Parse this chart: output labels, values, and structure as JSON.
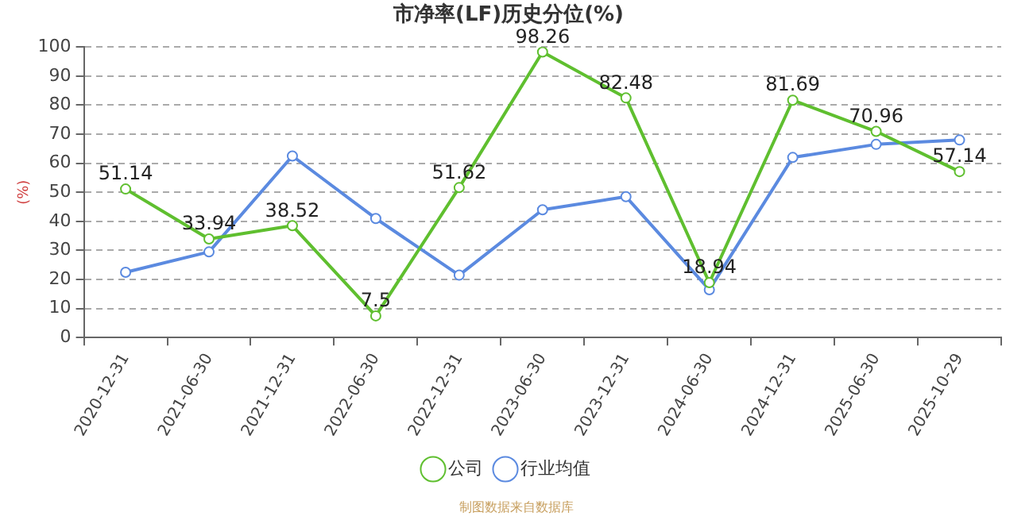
{
  "chart_data": {
    "type": "line",
    "title": "市净率(LF)历史分位(%)",
    "ylabel": "(%)",
    "categories": [
      "2020-12-31",
      "2021-06-30",
      "2021-12-31",
      "2022-06-30",
      "2022-12-31",
      "2023-06-30",
      "2023-12-31",
      "2024-06-30",
      "2024-12-31",
      "2025-06-30",
      "2025-10-29"
    ],
    "series": [
      {
        "name": "公司",
        "color": "#5fbf2f",
        "values": [
          51.14,
          33.94,
          38.52,
          7.5,
          51.62,
          98.26,
          82.48,
          18.94,
          81.69,
          70.96,
          57.14
        ],
        "value_labels": [
          "51.14",
          "33.94",
          "38.52",
          "7.5",
          "51.62",
          "98.26",
          "82.48",
          "18.94",
          "81.69",
          "70.96",
          "57.14"
        ]
      },
      {
        "name": "行业均值",
        "color": "#5b8ae0",
        "values": [
          22.5,
          29.5,
          62.5,
          41,
          21.5,
          44,
          48.5,
          16.5,
          62,
          66.5,
          68
        ]
      }
    ],
    "ylim": [
      0,
      100
    ],
    "yticks": [
      0,
      10,
      20,
      30,
      40,
      50,
      60,
      70,
      80,
      90,
      100
    ],
    "grid": "y",
    "legend": "bottom",
    "marker": "circle",
    "line_style": "solid",
    "annotations": [
      "制图数据来自数据库"
    ]
  }
}
